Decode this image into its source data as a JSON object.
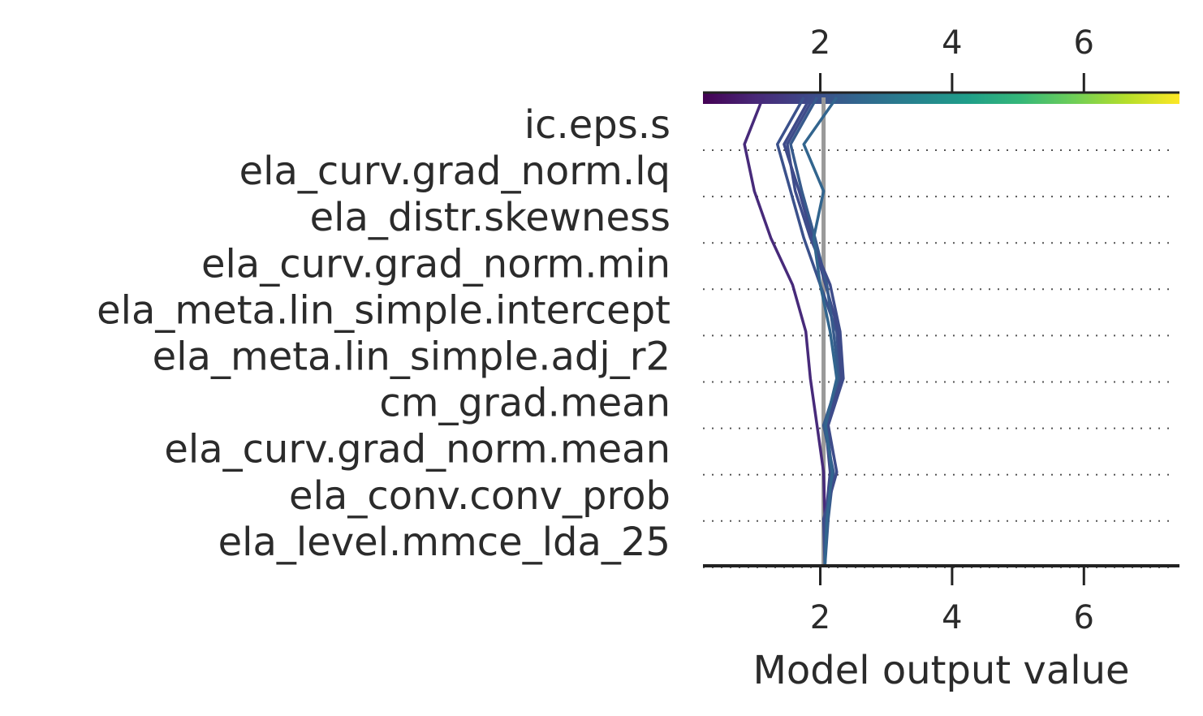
{
  "chart_data": {
    "type": "line",
    "subtype": "shap-decision-plot",
    "xlabel": "Model output value",
    "x_ticks": [
      2,
      4,
      6
    ],
    "xlim": [
      0.22,
      7.45
    ],
    "base_value": 2.05,
    "features": [
      "ic.eps.s",
      "ela_curv.grad_norm.lq",
      "ela_distr.skewness",
      "ela_curv.grad_norm.min",
      "ela_meta.lin_simple.intercept",
      "ela_meta.lin_simple.adj_r2",
      "cm_grad.mean",
      "ela_curv.grad_norm.mean",
      "ela_conv.conv_prob",
      "ela_level.mmce_lda_25"
    ],
    "grid": "dotted-horizontal",
    "colormap": {
      "name": "viridis",
      "stops": [
        "#440154",
        "#482878",
        "#3e4989",
        "#31688e",
        "#26828e",
        "#1f9e89",
        "#35b779",
        "#6ece58",
        "#b5de2b",
        "#fde725"
      ]
    },
    "colors": {
      "base_line": "#999999",
      "axis": "#222222",
      "grid": "#555555"
    },
    "series": [
      {
        "color": "#472a7a",
        "values": [
          1.13,
          0.85,
          1.0,
          1.25,
          1.58,
          1.78,
          1.85,
          1.95,
          2.05,
          2.07,
          2.07
        ]
      },
      {
        "color": "#3b518b",
        "values": [
          1.75,
          1.35,
          1.55,
          1.75,
          2.0,
          2.25,
          2.3,
          2.1,
          2.18,
          2.1,
          2.07
        ]
      },
      {
        "color": "#3e4a89",
        "values": [
          1.85,
          1.45,
          1.68,
          1.88,
          2.08,
          2.28,
          2.32,
          2.08,
          2.15,
          2.08,
          2.07
        ]
      },
      {
        "color": "#375a8c",
        "values": [
          1.95,
          1.55,
          1.72,
          1.92,
          2.1,
          2.2,
          2.28,
          2.05,
          2.2,
          2.12,
          2.07
        ]
      },
      {
        "color": "#3e4c8a",
        "values": [
          1.9,
          1.5,
          1.62,
          1.85,
          2.15,
          2.3,
          2.35,
          2.12,
          2.25,
          2.05,
          2.07
        ]
      },
      {
        "color": "#32658e",
        "values": [
          2.25,
          1.75,
          2.05,
          1.9,
          2.0,
          2.15,
          2.25,
          2.08,
          2.18,
          2.1,
          2.07
        ]
      }
    ]
  }
}
